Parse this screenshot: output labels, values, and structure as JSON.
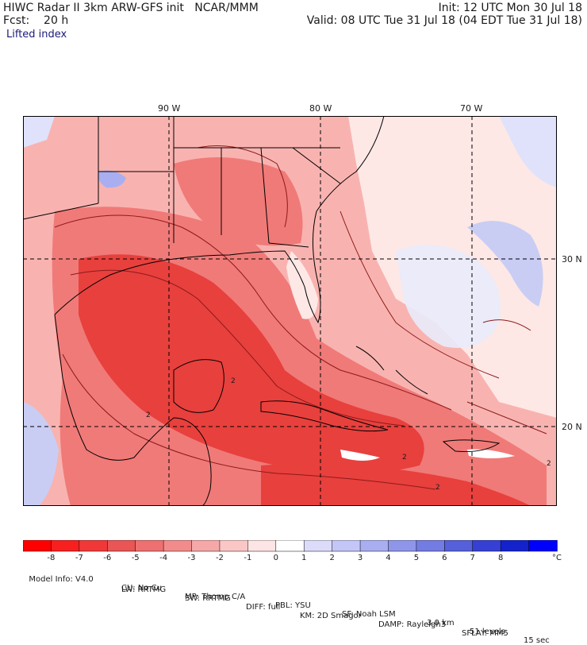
{
  "header": {
    "title": "HIWC Radar II 3km ARW-GFS init   NCAR/MMM",
    "init": "Init: 12 UTC Mon 30 Jul 18",
    "fcst": "Fcst:    20 h",
    "valid": "Valid: 08 UTC Tue 31 Jul 18 (04 EDT Tue 31 Jul 18)",
    "field": "Lifted index"
  },
  "map": {
    "lon_labels": [
      "90 W",
      "80 W",
      "70 W"
    ],
    "lat_labels": [
      "30 N",
      "20 N"
    ],
    "contour_labels": [
      "2",
      "2",
      "2",
      "2",
      "2"
    ],
    "colors": {
      "strong_unstable": "#e8403d",
      "unstable": "#f07a78",
      "weak_unstable": "#f8b3b0",
      "neutral": "#fde8e6",
      "stable": "#b7bef2",
      "very_stable": "#6f7ee0",
      "contour": "#8b1a1a",
      "border": "#000000",
      "grid": "#000000"
    }
  },
  "colorbar": {
    "labels": [
      "-8",
      "-7",
      "-6",
      "-5",
      "-4",
      "-3",
      "-2",
      "-1",
      "0",
      "1",
      "2",
      "3",
      "4",
      "5",
      "6",
      "7",
      "8"
    ],
    "unit": "°C",
    "colors": [
      "#ff0000",
      "#f81f1f",
      "#f03838",
      "#ea5555",
      "#ee7070",
      "#f28c8c",
      "#f6a8a8",
      "#fac6c6",
      "#fde5e5",
      "#ffffff",
      "#dcdcfa",
      "#c3c6f6",
      "#a9aef0",
      "#8f96ea",
      "#737ce2",
      "#5560da",
      "#3640d4",
      "#1422cc",
      "#0000ff"
    ]
  },
  "footer": {
    "line1": [
      "Model Info: V4.0",
      "CU: No Cu",
      "MP: Thomp C/A",
      "PBL: YSU",
      "SF: Noah LSM",
      "3.0 km",
      "51 levels",
      "15 sec"
    ],
    "line2": [
      "LW: RRTMG",
      "SW: RRTMG",
      "DIFF: full",
      "KM: 2D Smagor",
      "DAMP: Rayleigh3",
      "SFLAY: MM5"
    ]
  }
}
